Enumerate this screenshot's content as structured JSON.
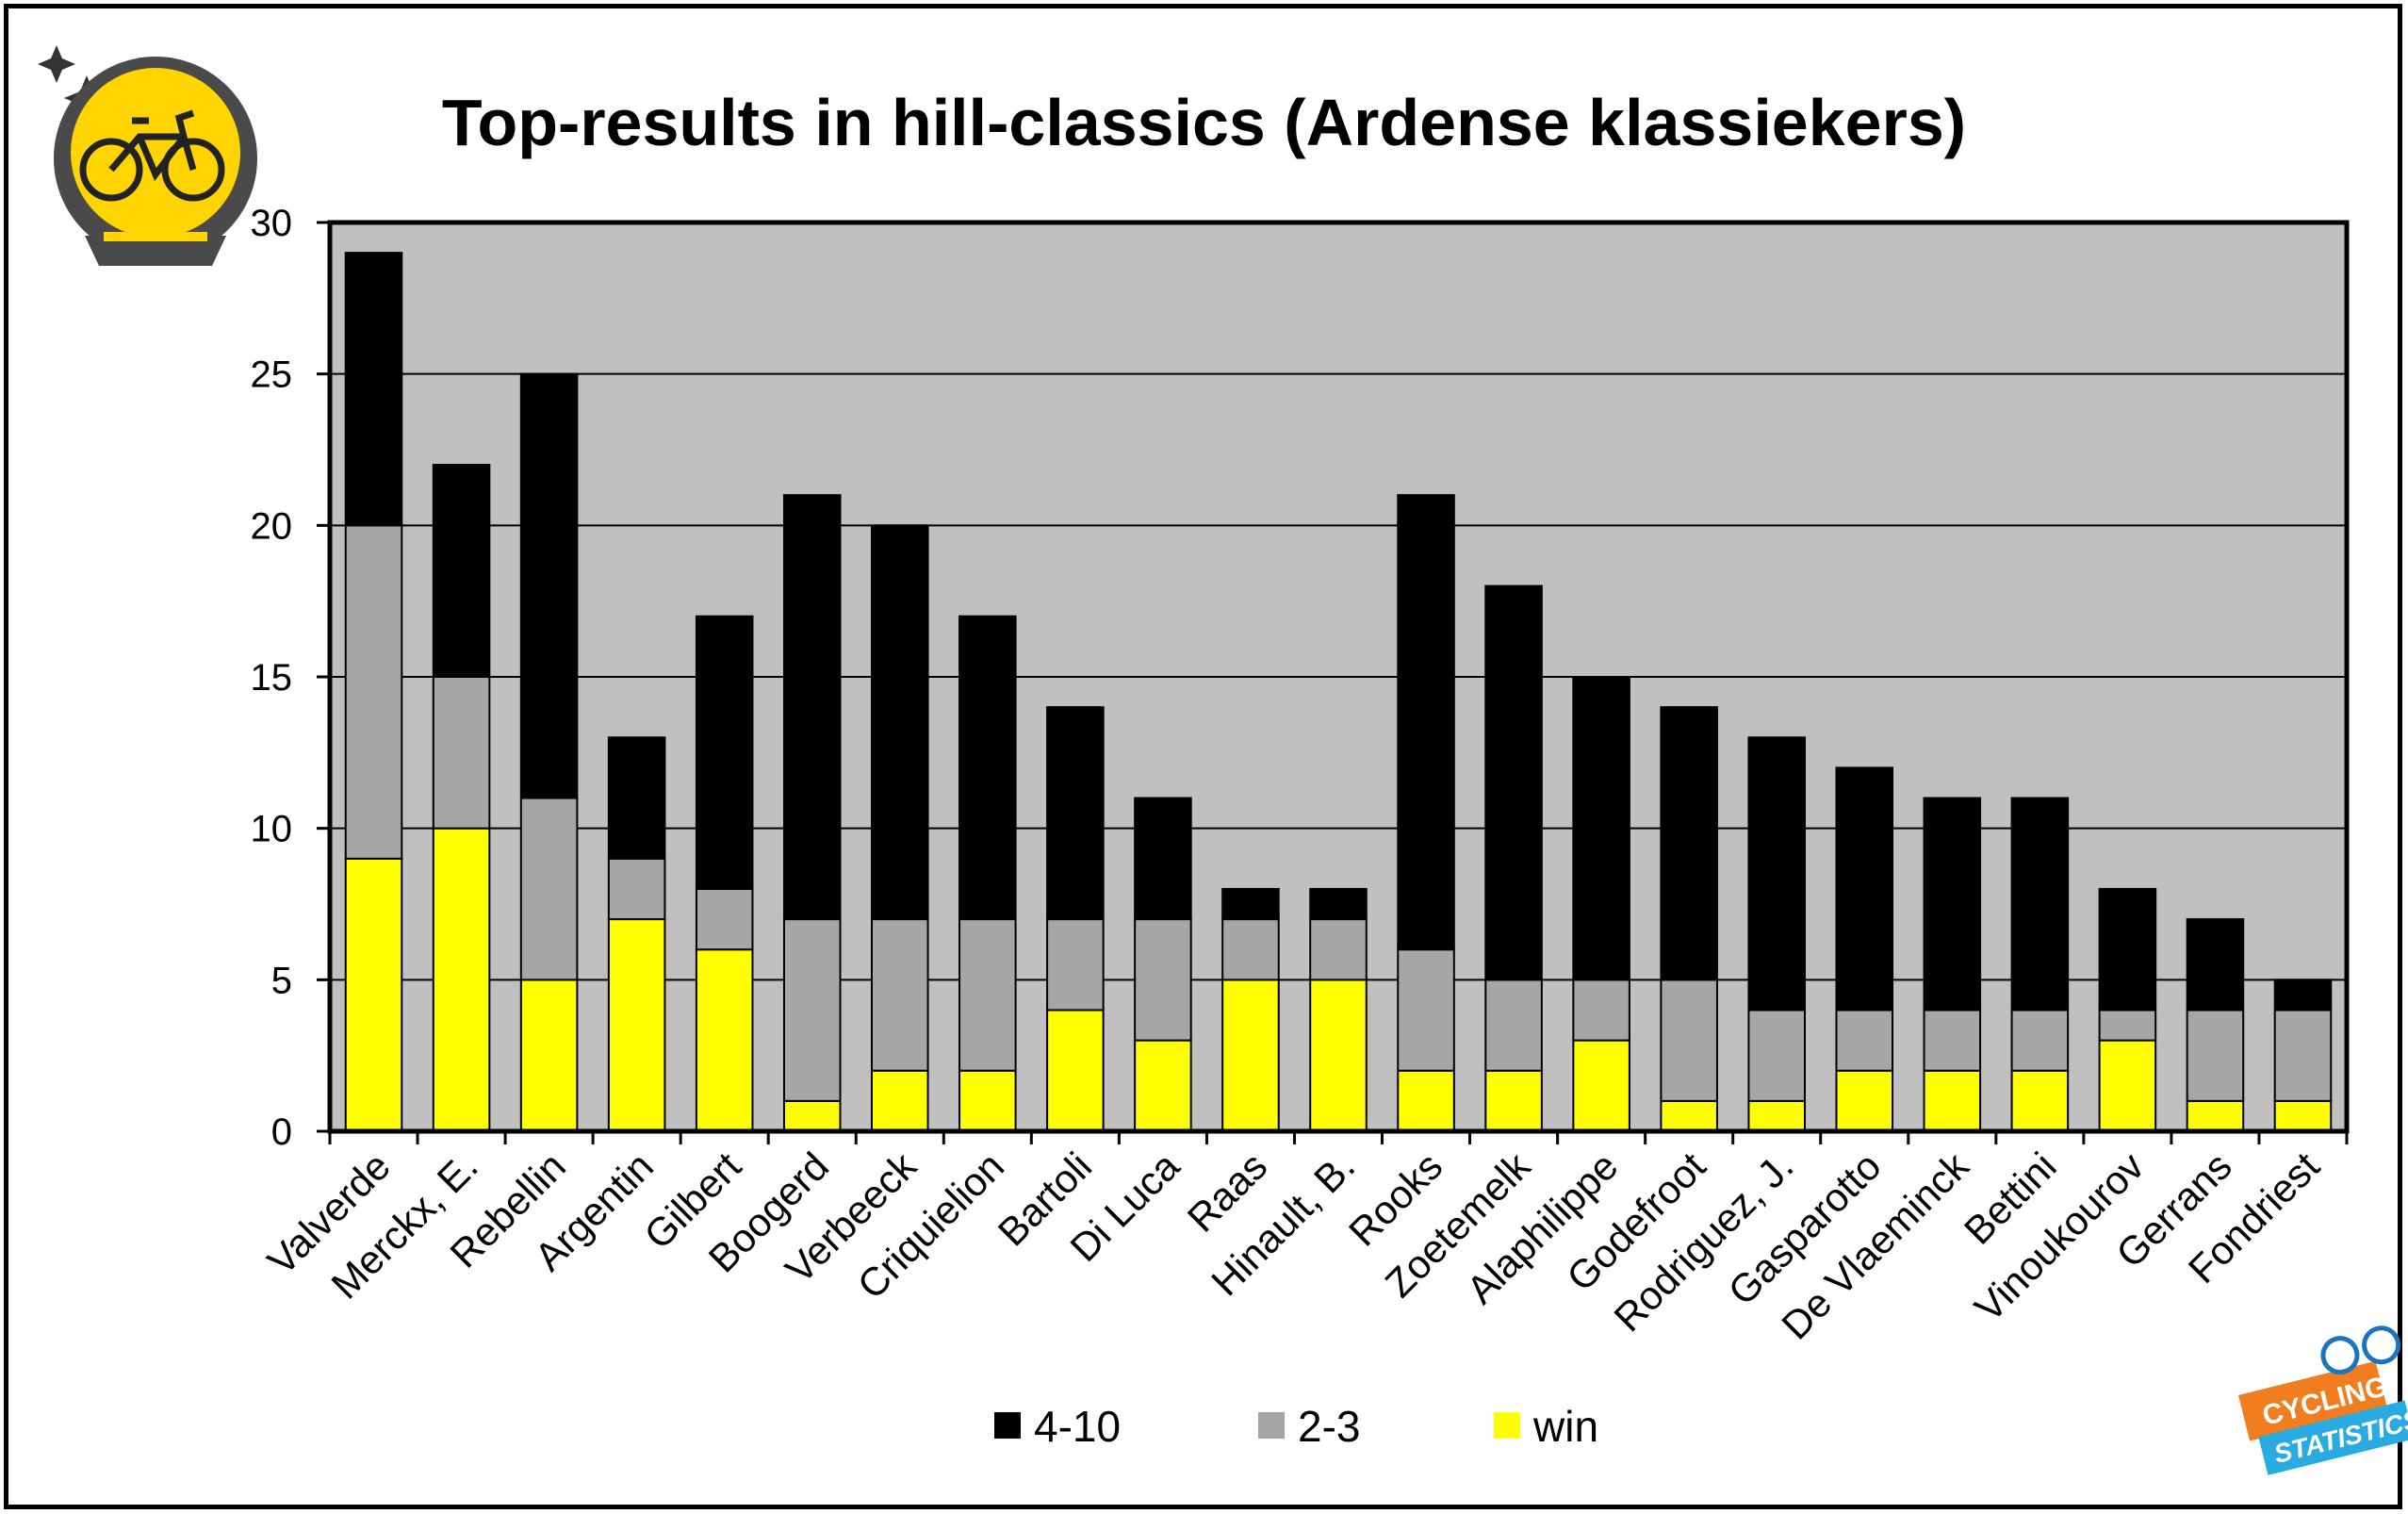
{
  "chart_data": {
    "type": "bar",
    "stacked": true,
    "title": "Top-results in hill-classics (Ardense klassiekers)",
    "xlabel": "",
    "ylabel": "",
    "ylim": [
      0,
      30
    ],
    "yticks": [
      "0",
      "5",
      "10",
      "15",
      "20",
      "25",
      "30"
    ],
    "grid": true,
    "legend_position": "bottom",
    "categories": [
      "Valverde",
      "Merckx, E.",
      "Rebellin",
      "Argentin",
      "Gilbert",
      "Boogerd",
      "Verbeeck",
      "Criquielion",
      "Bartoli",
      "Di Luca",
      "Raas",
      "Hinault, B.",
      "Rooks",
      "Zoetemelk",
      "Alaphilippe",
      "Godefroot",
      "Rodriguez, J.",
      "Gasparotto",
      "De Vlaeminck",
      "Bettini",
      "Vinoukourov",
      "Gerrans",
      "Fondriest"
    ],
    "series": [
      {
        "name": "win",
        "color": "#ffff00",
        "values": [
          9,
          10,
          5,
          7,
          6,
          1,
          2,
          2,
          4,
          3,
          5,
          5,
          2,
          2,
          3,
          1,
          1,
          2,
          2,
          2,
          3,
          1,
          1
        ]
      },
      {
        "name": "2-3",
        "color": "#a6a6a6",
        "values": [
          11,
          5,
          6,
          2,
          2,
          6,
          5,
          5,
          3,
          4,
          2,
          2,
          4,
          3,
          2,
          4,
          3,
          2,
          2,
          2,
          1,
          3,
          3
        ]
      },
      {
        "name": "4-10",
        "color": "#000000",
        "values": [
          9,
          7,
          14,
          4,
          9,
          14,
          13,
          10,
          7,
          4,
          1,
          1,
          15,
          13,
          10,
          9,
          9,
          8,
          7,
          7,
          4,
          3,
          1
        ]
      }
    ],
    "legend_order": [
      "4-10",
      "2-3",
      "win"
    ],
    "plot_background": "#c0c0c0"
  },
  "logos": {
    "left": "crystal-ball-bicycle-logo",
    "right": "cycling-statistics-logo",
    "right_text": [
      "CYCLING",
      "STATISTICS"
    ]
  }
}
